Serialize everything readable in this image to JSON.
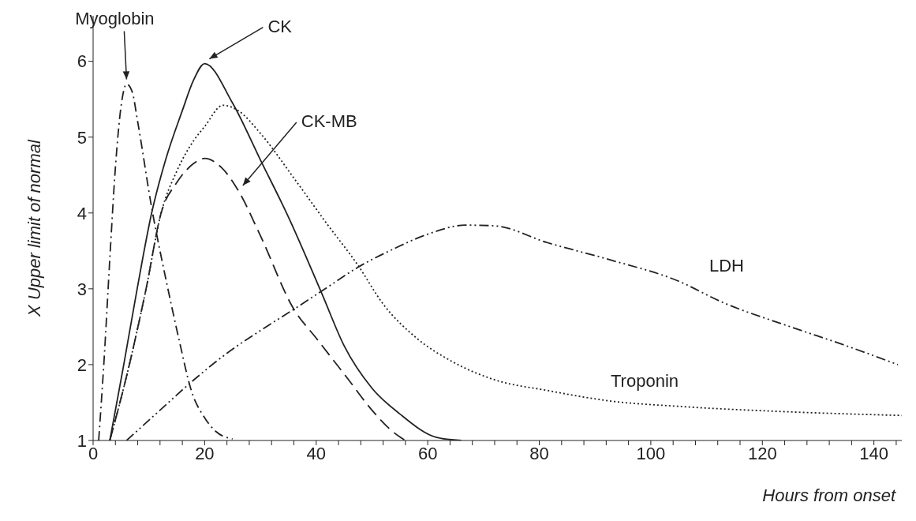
{
  "chart_data": {
    "type": "line",
    "xlabel": "Hours from onset",
    "ylabel": "X Upper limit of normal",
    "xlim": [
      0,
      145
    ],
    "ylim": [
      1,
      6.6
    ],
    "xticks": [
      0,
      {
        "value": 4,
        "label": null
      },
      {
        "value": 8,
        "label": null
      },
      {
        "value": 12,
        "label": null
      },
      {
        "value": 16,
        "label": null
      },
      20,
      {
        "value": 24,
        "label": null
      },
      {
        "value": 28,
        "label": null
      },
      {
        "value": 32,
        "label": null
      },
      {
        "value": 36,
        "label": null
      },
      40,
      {
        "value": 44,
        "label": null
      },
      {
        "value": 48,
        "label": null
      },
      {
        "value": 52,
        "label": null
      },
      {
        "value": 56,
        "label": null
      },
      60,
      {
        "value": 64,
        "label": null
      },
      {
        "value": 68,
        "label": null
      },
      {
        "value": 72,
        "label": null
      },
      {
        "value": 76,
        "label": null
      },
      80,
      {
        "value": 84,
        "label": null
      },
      {
        "value": 88,
        "label": null
      },
      {
        "value": 92,
        "label": null
      },
      {
        "value": 96,
        "label": null
      },
      100,
      {
        "value": 104,
        "label": null
      },
      {
        "value": 108,
        "label": null
      },
      {
        "value": 112,
        "label": null
      },
      {
        "value": 116,
        "label": null
      },
      120,
      {
        "value": 124,
        "label": null
      },
      {
        "value": 128,
        "label": null
      },
      {
        "value": 132,
        "label": null
      },
      {
        "value": 136,
        "label": null
      },
      140,
      {
        "value": 144,
        "label": null
      }
    ],
    "yticks": [
      1,
      2,
      3,
      4,
      5,
      6
    ],
    "grid": false,
    "legend": false,
    "marker": "none",
    "series": [
      {
        "name": "Myoglobin",
        "color": "#222222",
        "line_style": "dashdot",
        "x": [
          1,
          2,
          3,
          4,
          5,
          6,
          7,
          8,
          10.5,
          13.3,
          15.5,
          17.6,
          20,
          22,
          25
        ],
        "values": [
          1,
          2.1,
          3.4,
          4.6,
          5.4,
          5.7,
          5.6,
          5.2,
          4.07,
          3.04,
          2.3,
          1.66,
          1.3,
          1.12,
          1.02
        ]
      },
      {
        "name": "CK",
        "color": "#222222",
        "line_style": "solid",
        "x": [
          3,
          5.5,
          7.9,
          10.5,
          13,
          16,
          18,
          20,
          25,
          30,
          35,
          41,
          45,
          50,
          55,
          61.6,
          66
        ],
        "values": [
          1,
          2,
          3,
          4,
          4.7,
          5.35,
          5.75,
          5.97,
          5.45,
          4.7,
          3.95,
          2.94,
          2.25,
          1.69,
          1.35,
          1.04,
          1
        ]
      },
      {
        "name": "CK-MB",
        "color": "#222222",
        "line_style": "dashed",
        "x": [
          3,
          6.5,
          9.5,
          12.2,
          15,
          18,
          20,
          23,
          26,
          30,
          36,
          40,
          45.5,
          50,
          54,
          56
        ],
        "values": [
          1,
          2,
          3,
          4,
          4.4,
          4.65,
          4.72,
          4.6,
          4.3,
          3.7,
          2.73,
          2.35,
          1.83,
          1.4,
          1.1,
          1
        ]
      },
      {
        "name": "Troponin",
        "color": "#222222",
        "line_style": "dotted",
        "x": [
          3,
          6.5,
          9.5,
          12.2,
          15,
          18,
          20,
          23.3,
          26,
          30,
          36,
          42,
          47.4,
          52,
          58,
          64.4,
          72,
          81.4,
          92.8,
          105,
          124,
          145
        ],
        "values": [
          1,
          2,
          3,
          4,
          4.55,
          4.95,
          5.14,
          5.42,
          5.35,
          5.05,
          4.46,
          3.85,
          3.32,
          2.8,
          2.35,
          2.04,
          1.8,
          1.66,
          1.52,
          1.45,
          1.38,
          1.33
        ]
      },
      {
        "name": "LDH",
        "color": "#222222",
        "line_style": "dashdotdot",
        "x": [
          6,
          12,
          17.6,
          24,
          30,
          36,
          42,
          47.4,
          54,
          60,
          66.8,
          72,
          81.4,
          92.8,
          105,
          112.6,
          125,
          135,
          144.3
        ],
        "values": [
          1,
          1.4,
          1.77,
          2.15,
          2.45,
          2.73,
          3.02,
          3.28,
          3.53,
          3.72,
          3.84,
          3.83,
          3.61,
          3.38,
          3.1,
          2.83,
          2.5,
          2.25,
          2
        ]
      }
    ]
  }
}
